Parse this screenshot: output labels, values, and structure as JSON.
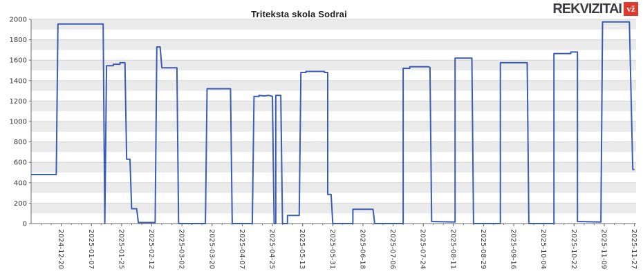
{
  "logo": {
    "brand": "REKVIZITAI",
    "badge": "vž"
  },
  "chart_data": {
    "type": "line",
    "title": "Triteksta skola Sodrai",
    "xlabel": "",
    "ylabel": "",
    "ylim": [
      0,
      2000
    ],
    "y_ticks": [
      0,
      200,
      400,
      600,
      800,
      1000,
      1200,
      1400,
      1600,
      1800,
      2000
    ],
    "x_domain": [
      "2024-12-02",
      "2025-11-28"
    ],
    "x_tick_labels": [
      "2024-12-20",
      "2025-01-07",
      "2025-01-25",
      "2025-02-12",
      "2025-03-02",
      "2025-03-20",
      "2025-04-07",
      "2025-04-25",
      "2025-05-13",
      "2025-05-31",
      "2025-06-18",
      "2025-07-06",
      "2025-07-24",
      "2025-08-11",
      "2025-08-29",
      "2025-09-16",
      "2025-10-04",
      "2025-10-22",
      "2025-11-09",
      "2025-11-27"
    ],
    "grid": true,
    "legend": "none",
    "stripe_step": 100,
    "stripe_color": "#ebebeb",
    "grid_color": "#d6d6d6",
    "axis_color": "#6b6b6b",
    "line_color": "#3c5cb4",
    "series": [
      {
        "name": "Skola Sodrai",
        "color": "#3c5cb4",
        "points": [
          [
            "2024-12-02",
            480
          ],
          [
            "2024-12-17",
            480
          ],
          [
            "2024-12-18",
            1955
          ],
          [
            "2025-01-14",
            1955
          ],
          [
            "2025-01-15",
            0
          ],
          [
            "2025-01-16",
            1545
          ],
          [
            "2025-01-20",
            1545
          ],
          [
            "2025-01-20",
            1560
          ],
          [
            "2025-01-24",
            1560
          ],
          [
            "2025-01-24",
            1575
          ],
          [
            "2025-01-27",
            1575
          ],
          [
            "2025-01-28",
            630
          ],
          [
            "2025-01-30",
            630
          ],
          [
            "2025-01-31",
            145
          ],
          [
            "2025-02-03",
            145
          ],
          [
            "2025-02-04",
            10
          ],
          [
            "2025-02-14",
            10
          ],
          [
            "2025-02-15",
            1730
          ],
          [
            "2025-02-17",
            1730
          ],
          [
            "2025-02-18",
            1525
          ],
          [
            "2025-02-27",
            1525
          ],
          [
            "2025-02-28",
            0
          ],
          [
            "2025-03-16",
            0
          ],
          [
            "2025-03-17",
            1320
          ],
          [
            "2025-03-31",
            1320
          ],
          [
            "2025-04-01",
            0
          ],
          [
            "2025-04-13",
            0
          ],
          [
            "2025-04-14",
            1245
          ],
          [
            "2025-04-17",
            1245
          ],
          [
            "2025-04-17",
            1255
          ],
          [
            "2025-04-20",
            1250
          ],
          [
            "2025-04-23",
            1255
          ],
          [
            "2025-04-25",
            1245
          ],
          [
            "2025-04-26",
            0
          ],
          [
            "2025-04-27",
            0
          ],
          [
            "2025-04-27",
            1255
          ],
          [
            "2025-04-30",
            1255
          ],
          [
            "2025-05-01",
            0
          ],
          [
            "2025-05-04",
            0
          ],
          [
            "2025-05-04",
            80
          ],
          [
            "2025-05-11",
            80
          ],
          [
            "2025-05-12",
            1480
          ],
          [
            "2025-05-15",
            1480
          ],
          [
            "2025-05-15",
            1490
          ],
          [
            "2025-05-26",
            1490
          ],
          [
            "2025-05-26",
            1480
          ],
          [
            "2025-05-28",
            1480
          ],
          [
            "2025-05-28",
            285
          ],
          [
            "2025-05-30",
            285
          ],
          [
            "2025-05-31",
            0
          ],
          [
            "2025-06-12",
            0
          ],
          [
            "2025-06-12",
            140
          ],
          [
            "2025-06-24",
            140
          ],
          [
            "2025-06-25",
            0
          ],
          [
            "2025-07-12",
            0
          ],
          [
            "2025-07-12",
            1520
          ],
          [
            "2025-07-16",
            1520
          ],
          [
            "2025-07-16",
            1535
          ],
          [
            "2025-07-27",
            1535
          ],
          [
            "2025-07-28",
            1530
          ],
          [
            "2025-07-29",
            20
          ],
          [
            "2025-08-12",
            15
          ],
          [
            "2025-08-12",
            1620
          ],
          [
            "2025-08-22",
            1620
          ],
          [
            "2025-08-23",
            0
          ],
          [
            "2025-09-08",
            0
          ],
          [
            "2025-09-08",
            1575
          ],
          [
            "2025-09-24",
            1575
          ],
          [
            "2025-09-25",
            0
          ],
          [
            "2025-10-10",
            0
          ],
          [
            "2025-10-10",
            1665
          ],
          [
            "2025-10-20",
            1665
          ],
          [
            "2025-10-20",
            1680
          ],
          [
            "2025-10-24",
            1680
          ],
          [
            "2025-10-24",
            20
          ],
          [
            "2025-11-07",
            15
          ],
          [
            "2025-11-08",
            1975
          ],
          [
            "2025-11-24",
            1975
          ],
          [
            "2025-11-26",
            530
          ],
          [
            "2025-11-27",
            530
          ]
        ]
      }
    ]
  }
}
